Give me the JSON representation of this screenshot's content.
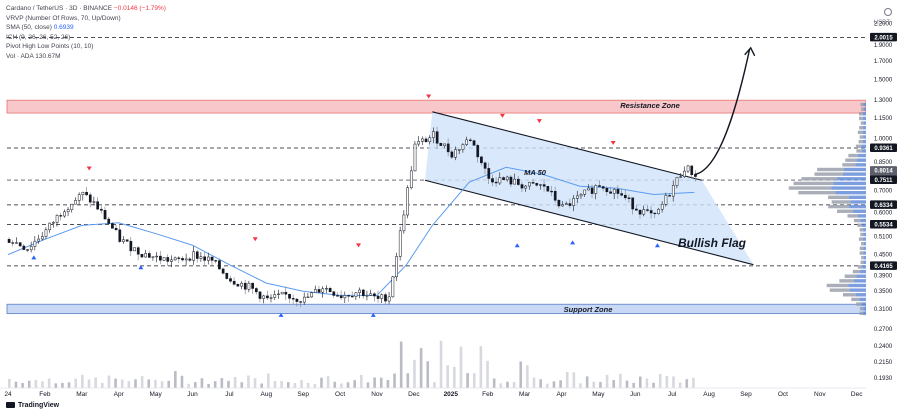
{
  "legend": {
    "symbol": "Cardano / TetherUS · 3D · BINANCE",
    "change": "−0.0146 (−1.79%)",
    "vrvp": "VRVP (Number Of Rows, 70, Up/Down)",
    "sma_label": "SMA (50, close)",
    "sma_value": "0.6939",
    "ichimoku": "ICH (9, 26, 26, 52, 26)",
    "pivots": "Pivot High Low Points (10, 10)",
    "vol_label": "Vol · ADA",
    "vol_value": "130.67M"
  },
  "brand": "TradingView",
  "chart_data": {
    "type": "line",
    "y_axis_title": "USDT",
    "y_scale": "log",
    "ylim": [
      0.18,
      2.35
    ],
    "y_ticks": [
      2.2,
      2.0,
      1.9,
      1.7,
      1.5,
      1.3,
      1.15,
      1.0,
      0.85,
      0.7,
      0.6,
      0.51,
      0.45,
      0.39,
      0.35,
      0.31,
      0.27,
      0.24,
      0.215,
      0.193
    ],
    "y_tick_labels": [
      "2.2000",
      "2.0000",
      "1.9000",
      "1.7000",
      "1.5000",
      "1.3000",
      "1.1500",
      "1.0000",
      "0.8500",
      "0.7000",
      "0.6000",
      "0.5100",
      "0.4500",
      "0.3900",
      "0.3500",
      "0.3100",
      "0.2700",
      "0.2400",
      "0.2150",
      "0.1930"
    ],
    "x_tick_labels": [
      "24",
      "Feb",
      "Mar",
      "Apr",
      "May",
      "Jun",
      "Jul",
      "Aug",
      "Sep",
      "Oct",
      "Nov",
      "Dec",
      "2025",
      "Feb",
      "Mar",
      "Apr",
      "May",
      "Jun",
      "Jul",
      "Aug",
      "Sep",
      "Oct",
      "Nov",
      "Dec"
    ],
    "x_tick_months": [
      0,
      1,
      2,
      3,
      4,
      5,
      6,
      7,
      8,
      9,
      10,
      11,
      12,
      13,
      14,
      15,
      16,
      17,
      18,
      19,
      20,
      21,
      22,
      23
    ],
    "price_labels": [
      {
        "value": 2.0015,
        "text": "2.0015",
        "style": "dark"
      },
      {
        "value": 0.9361,
        "text": "0.9361",
        "style": "dark"
      },
      {
        "value": 0.8014,
        "text": "0.8014",
        "style": "gray"
      },
      {
        "value": 0.7511,
        "text": "0.7511",
        "style": "dark"
      },
      {
        "value": 0.6334,
        "text": "0.6334",
        "style": "dark"
      },
      {
        "value": 0.5534,
        "text": "0.5534",
        "style": "dark"
      },
      {
        "value": 0.4165,
        "text": "0.4165",
        "style": "dark"
      }
    ],
    "current_sublabel": "3d 13h",
    "levels": [
      2.0015,
      0.9361,
      0.7511,
      0.6334,
      0.5534,
      0.4165
    ],
    "resistance_zone": {
      "label": "Resistance Zone",
      "low": 1.19,
      "high": 1.3
    },
    "support_zone": {
      "label": "Support Zone",
      "low": 0.3,
      "high": 0.32
    },
    "flag_label": "Bullish Flag",
    "ma_label": "MA 50",
    "price_path": [
      [
        0,
        0.5
      ],
      [
        0.5,
        0.47
      ],
      [
        1,
        0.53
      ],
      [
        1.5,
        0.62
      ],
      [
        2,
        0.68
      ],
      [
        2.3,
        0.64
      ],
      [
        2.6,
        0.58
      ],
      [
        3,
        0.5
      ],
      [
        3.5,
        0.46
      ],
      [
        4,
        0.44
      ],
      [
        4.5,
        0.43
      ],
      [
        5,
        0.45
      ],
      [
        5.5,
        0.43
      ],
      [
        6,
        0.38
      ],
      [
        6.5,
        0.36
      ],
      [
        7,
        0.33
      ],
      [
        7.5,
        0.34
      ],
      [
        8,
        0.33
      ],
      [
        8.5,
        0.36
      ],
      [
        9,
        0.34
      ],
      [
        9.5,
        0.35
      ],
      [
        10,
        0.33
      ],
      [
        10.3,
        0.34
      ],
      [
        10.5,
        0.45
      ],
      [
        10.8,
        0.7
      ],
      [
        11,
        0.95
      ],
      [
        11.5,
        1.02
      ],
      [
        12,
        0.9
      ],
      [
        12.5,
        1.0
      ],
      [
        13,
        0.76
      ],
      [
        13.5,
        0.75
      ],
      [
        14,
        0.72
      ],
      [
        14.5,
        0.72
      ],
      [
        15,
        0.62
      ],
      [
        15.5,
        0.67
      ],
      [
        16,
        0.73
      ],
      [
        16.5,
        0.69
      ],
      [
        17,
        0.62
      ],
      [
        17.5,
        0.58
      ],
      [
        18,
        0.72
      ],
      [
        18.3,
        0.82
      ],
      [
        18.6,
        0.78
      ]
    ],
    "ma50_path": [
      [
        0,
        0.45
      ],
      [
        1,
        0.5
      ],
      [
        2,
        0.55
      ],
      [
        3,
        0.56
      ],
      [
        4,
        0.52
      ],
      [
        5,
        0.48
      ],
      [
        6,
        0.42
      ],
      [
        7,
        0.37
      ],
      [
        8,
        0.35
      ],
      [
        9,
        0.34
      ],
      [
        10,
        0.34
      ],
      [
        10.8,
        0.42
      ],
      [
        11.5,
        0.55
      ],
      [
        12.5,
        0.74
      ],
      [
        13.5,
        0.82
      ],
      [
        14.5,
        0.78
      ],
      [
        15.5,
        0.72
      ],
      [
        16.5,
        0.71
      ],
      [
        17.5,
        0.68
      ],
      [
        18.6,
        0.69
      ]
    ],
    "flag_channel": {
      "upper": [
        [
          11.5,
          1.2
        ],
        [
          18.8,
          0.75
        ]
      ],
      "lower": [
        [
          11.3,
          0.75
        ],
        [
          20.2,
          0.42
        ]
      ]
    },
    "projection": [
      [
        18.6,
        0.78
      ],
      [
        19.3,
        0.8
      ],
      [
        19.8,
        1.3
      ],
      [
        20.1,
        1.85
      ]
    ],
    "pivot_highs": [
      [
        2.2,
        0.78
      ],
      [
        6.7,
        0.48
      ],
      [
        9.5,
        0.46
      ],
      [
        11.4,
        1.28
      ],
      [
        13.4,
        1.12
      ],
      [
        14.4,
        1.08
      ],
      [
        16.4,
        0.93
      ]
    ],
    "pivot_lows": [
      [
        0.7,
        0.46
      ],
      [
        3.6,
        0.43
      ],
      [
        7.4,
        0.31
      ],
      [
        9.9,
        0.31
      ],
      [
        13.8,
        0.5
      ],
      [
        15.3,
        0.51
      ],
      [
        17.6,
        0.5
      ]
    ]
  }
}
